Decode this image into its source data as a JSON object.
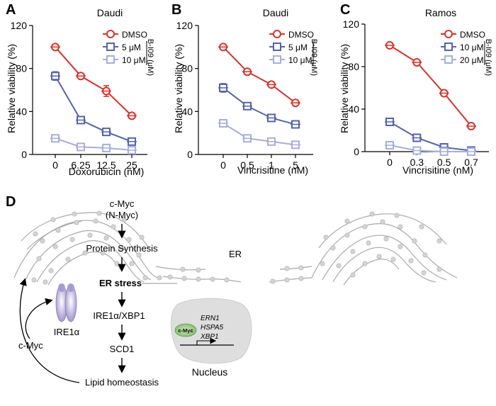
{
  "chart_data": [
    {
      "type": "line",
      "panel_label": "A",
      "title": "Daudi",
      "xlabel": "Doxorubicin (nM)",
      "ylabel": "Relative viability (%)",
      "categories": [
        "0",
        "6.25",
        "12.5",
        "25"
      ],
      "ylim": [
        0,
        120
      ],
      "yticks": [
        "0",
        "40",
        "80",
        "120"
      ],
      "legend_group": "B-I09 (μM)",
      "series": [
        {
          "name": "DMSO",
          "values": [
            100,
            73,
            59,
            36
          ],
          "errors": [
            0,
            0,
            5,
            0
          ],
          "color": "#d6322a"
        },
        {
          "name": "5 μM",
          "values": [
            73,
            32,
            21,
            12
          ],
          "errors": [
            4,
            0,
            0,
            0
          ],
          "color": "#5363b0"
        },
        {
          "name": "10 μM",
          "values": [
            15,
            7,
            6,
            4
          ],
          "errors": [
            0,
            0,
            0,
            0
          ],
          "color": "#a6aede"
        }
      ]
    },
    {
      "type": "line",
      "panel_label": "B",
      "title": "Daudi",
      "xlabel": "Vincrisitine (nM)",
      "ylabel": "Relative viability (%)",
      "categories": [
        "0",
        "0.5",
        "1",
        "5"
      ],
      "ylim": [
        0,
        120
      ],
      "yticks": [
        "0",
        "40",
        "80",
        "120"
      ],
      "legend_group": "B-I09 (μM)",
      "series": [
        {
          "name": "DMSO",
          "values": [
            100,
            77,
            65,
            48
          ],
          "errors": [
            0,
            0,
            0,
            0
          ],
          "color": "#d6322a"
        },
        {
          "name": "5 μM",
          "values": [
            62,
            45,
            34,
            28
          ],
          "errors": [
            4,
            0,
            0,
            0
          ],
          "color": "#5363b0"
        },
        {
          "name": "10 μM",
          "values": [
            29,
            15,
            12,
            9
          ],
          "errors": [
            0,
            0,
            0,
            0
          ],
          "color": "#a6aede"
        }
      ]
    },
    {
      "type": "line",
      "panel_label": "C",
      "title": "Ramos",
      "xlabel": "Vincrisitine (nM)",
      "ylabel": "Relative viability (%)",
      "categories": [
        "0",
        "0.3",
        "0.5",
        "0.7"
      ],
      "ylim": [
        0,
        120
      ],
      "yticks": [
        "0",
        "40",
        "80",
        "120"
      ],
      "legend_group": "B-I09 (μM)",
      "series": [
        {
          "name": "DMSO",
          "values": [
            100,
            84,
            55,
            24
          ],
          "errors": [
            0,
            0,
            0,
            0
          ],
          "color": "#d6322a"
        },
        {
          "name": "10 μM",
          "values": [
            28,
            13,
            4,
            1
          ],
          "errors": [
            0,
            0,
            0,
            0
          ],
          "color": "#5363b0"
        },
        {
          "name": "20 μM",
          "values": [
            6,
            1,
            0,
            0
          ],
          "errors": [
            0,
            0,
            0,
            0
          ],
          "color": "#a6aede"
        }
      ]
    }
  ],
  "diagram": {
    "panel_label": "D",
    "cmyc_top": "c-Myc",
    "nmyc": "(N-Myc)",
    "protein_synthesis": "Protein Synthesis",
    "er_label": "ER",
    "er_stress": "ER stress",
    "ire1_xbp1": "IRE1α/XBP1",
    "ire1a": "IRE1α",
    "cmyc_side": "c-Myc",
    "scd1": "SCD1",
    "lipid": "Lipid homeostasis",
    "nucleus": "Nucleus",
    "nucleus_cmyc": "c-Myc",
    "genes": [
      "ERN1",
      "HSPA5",
      "XBP1"
    ]
  }
}
